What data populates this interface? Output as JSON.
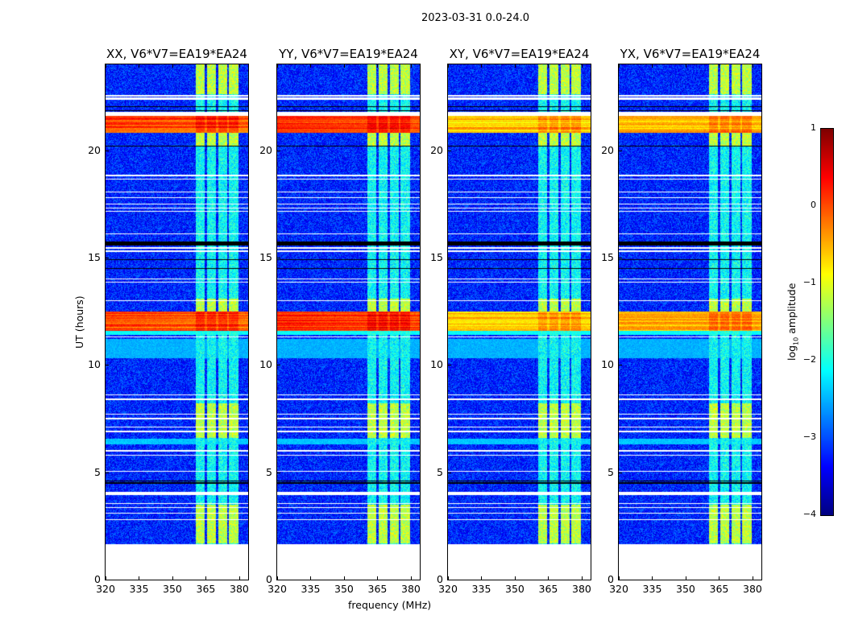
{
  "chart_data": {
    "type": "heatmap",
    "title": "2023-03-31 0.0-24.0",
    "xlabel": "frequency (MHz)",
    "ylabel": "UT (hours)",
    "xlim": [
      320,
      384
    ],
    "ylim": [
      0,
      24
    ],
    "xticks": [
      320,
      335,
      350,
      365,
      380
    ],
    "yticks": [
      0,
      5,
      10,
      15,
      20
    ],
    "panels": [
      {
        "title": "XX, V6*V7=EA19*EA24",
        "pol": "XX",
        "band_level": 0.1
      },
      {
        "title": "YY, V6*V7=EA19*EA24",
        "pol": "YY",
        "band_level": 0.2
      },
      {
        "title": "XY, V6*V7=EA19*EA24",
        "pol": "XY",
        "band_level": -0.6
      },
      {
        "title": "YX, V6*V7=EA19*EA24",
        "pol": "YX",
        "band_level": -0.5
      }
    ],
    "colorbar": {
      "label_main": "log",
      "label_sub": "10",
      "label_rest": " amplitude",
      "range": [
        -4,
        1
      ],
      "ticks": [
        1,
        0,
        -1,
        -2,
        -3,
        -4
      ],
      "tick_labels": [
        "1",
        "0",
        "−1",
        "−2",
        "−3",
        "−4"
      ],
      "colormap": "jet"
    },
    "background_level": -3.2,
    "data_start_hour": 1.65,
    "rfi_channels_mhz": [
      [
        360.5,
        364.5
      ],
      [
        365.5,
        369.5
      ],
      [
        370.5,
        374.5
      ],
      [
        375.5,
        379.5
      ]
    ],
    "rfi_level": -2.1,
    "strong_rfi_hours": [
      [
        6.6,
        8.2
      ],
      [
        12.4,
        13.1
      ],
      [
        20.2,
        21.6
      ],
      [
        22.6,
        24.0
      ],
      [
        1.7,
        3.5
      ]
    ],
    "bright_bands_hours": [
      [
        20.8,
        21.6
      ],
      [
        11.6,
        12.5
      ]
    ],
    "cyan_bands": [
      {
        "hours": [
          11.4,
          11.6
        ],
        "level": -2.1
      },
      {
        "hours": [
          10.3,
          11.2
        ],
        "level": -2.5
      },
      {
        "hours": [
          6.3,
          6.55
        ],
        "level": -2.4
      }
    ],
    "flagged_white_hours": [
      [
        22.35,
        22.45
      ],
      [
        22.5,
        22.56
      ],
      [
        21.6,
        21.8
      ],
      [
        18.8,
        18.86
      ],
      [
        18.62,
        18.68
      ],
      [
        18.03,
        18.08
      ],
      [
        17.78,
        17.83
      ],
      [
        17.48,
        17.53
      ],
      [
        17.28,
        17.32
      ],
      [
        17.13,
        17.17
      ],
      [
        16.08,
        16.13
      ],
      [
        15.43,
        15.48
      ],
      [
        15.28,
        15.33
      ],
      [
        13.98,
        14.03
      ],
      [
        13.83,
        13.88
      ],
      [
        12.98,
        13.03
      ],
      [
        11.28,
        11.33
      ],
      [
        8.58,
        8.63
      ],
      [
        8.38,
        8.43
      ],
      [
        7.68,
        7.73
      ],
      [
        7.48,
        7.53
      ],
      [
        7.08,
        7.13
      ],
      [
        6.88,
        6.93
      ],
      [
        5.98,
        6.03
      ],
      [
        5.78,
        5.83
      ],
      [
        5.03,
        5.08
      ],
      [
        3.95,
        4.1
      ],
      [
        3.53,
        3.58
      ],
      [
        3.33,
        3.38
      ],
      [
        3.08,
        3.13
      ],
      [
        2.78,
        2.83
      ]
    ],
    "flagged_black_hours": [
      [
        22.0,
        22.04
      ],
      [
        21.83,
        21.87
      ],
      [
        20.18,
        20.22
      ],
      [
        15.55,
        15.75
      ],
      [
        14.88,
        14.92
      ],
      [
        14.48,
        14.52
      ],
      [
        4.58,
        4.62
      ],
      [
        4.48,
        4.52
      ]
    ]
  }
}
